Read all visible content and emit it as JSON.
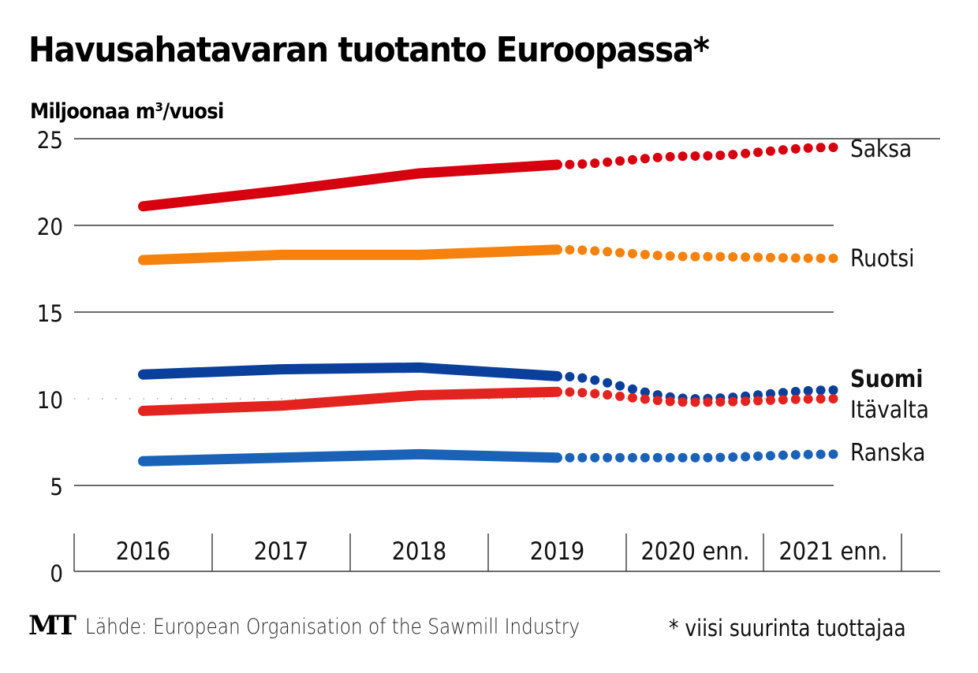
{
  "title": "Havusahatavaran tuotanto Euroopassa*",
  "unit_label": "Miljoonaa m³/vuosi",
  "footer": {
    "logo": "MT",
    "source": "Lähde: European Organisation of the Sawmill Industry",
    "note": "* viisi suurinta tuottajaa"
  },
  "chart_data": {
    "type": "line",
    "title": "Havusahatavaran tuotanto Euroopassa*",
    "xlabel": "",
    "ylabel": "Miljoonaa m³/vuosi",
    "ylim": [
      0,
      25
    ],
    "yticks": [
      0,
      5,
      10,
      15,
      20,
      25
    ],
    "grid": true,
    "legend": "right (direct labels at line ends)",
    "categories": [
      "2016",
      "2017",
      "2018",
      "2019",
      "2020 enn.",
      "2021 enn."
    ],
    "forecast_from_index": 3,
    "series": [
      {
        "name": "Saksa",
        "color": "#d7000f",
        "bold": false,
        "values": [
          21.1,
          22.0,
          23.0,
          23.5,
          24.0,
          24.5
        ]
      },
      {
        "name": "Ruotsi",
        "color": "#f5820f",
        "bold": false,
        "values": [
          18.0,
          18.3,
          18.3,
          18.6,
          18.2,
          18.1
        ]
      },
      {
        "name": "Suomi",
        "color": "#0a3f9c",
        "bold": true,
        "values": [
          11.4,
          11.7,
          11.8,
          11.3,
          10.0,
          10.5
        ]
      },
      {
        "name": "Itävalta",
        "color": "#e3231f",
        "bold": false,
        "values": [
          9.3,
          9.6,
          10.2,
          10.4,
          9.8,
          10.0
        ]
      },
      {
        "name": "Ranska",
        "color": "#1a62b8",
        "bold": false,
        "values": [
          6.4,
          6.6,
          6.8,
          6.6,
          6.6,
          6.8
        ]
      }
    ]
  }
}
